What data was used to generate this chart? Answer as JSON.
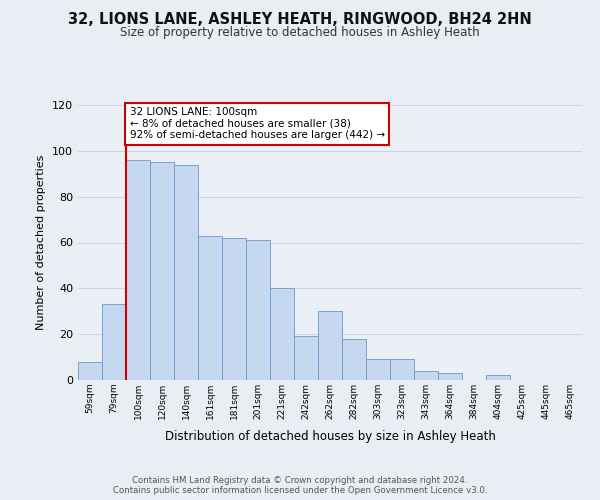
{
  "title": "32, LIONS LANE, ASHLEY HEATH, RINGWOOD, BH24 2HN",
  "subtitle": "Size of property relative to detached houses in Ashley Heath",
  "xlabel": "Distribution of detached houses by size in Ashley Heath",
  "ylabel": "Number of detached properties",
  "bar_labels": [
    "59sqm",
    "79sqm",
    "100sqm",
    "120sqm",
    "140sqm",
    "161sqm",
    "181sqm",
    "201sqm",
    "221sqm",
    "242sqm",
    "262sqm",
    "282sqm",
    "303sqm",
    "323sqm",
    "343sqm",
    "364sqm",
    "384sqm",
    "404sqm",
    "425sqm",
    "445sqm",
    "465sqm"
  ],
  "bar_values": [
    8,
    33,
    96,
    95,
    94,
    63,
    62,
    61,
    40,
    19,
    30,
    18,
    9,
    9,
    4,
    3,
    0,
    2,
    0,
    0,
    0
  ],
  "bar_fill_color": "#c5d8f0",
  "bar_edge_color": "#6699cc",
  "highlight_color": "#cc0000",
  "highlight_bar_index": 2,
  "annotation_line1": "32 LIONS LANE: 100sqm",
  "annotation_line2": "← 8% of detached houses are smaller (38)",
  "annotation_line3": "92% of semi-detached houses are larger (442) →",
  "annotation_box_color": "#ffffff",
  "annotation_box_edge_color": "#cc0000",
  "ylim": [
    0,
    120
  ],
  "yticks": [
    0,
    20,
    40,
    60,
    80,
    100,
    120
  ],
  "grid_color": "#c8d4e0",
  "background_color": "#e8eef4",
  "plot_bg_color": "#eaf0f6",
  "footer_line1": "Contains HM Land Registry data © Crown copyright and database right 2024.",
  "footer_line2": "Contains public sector information licensed under the Open Government Licence v3.0."
}
